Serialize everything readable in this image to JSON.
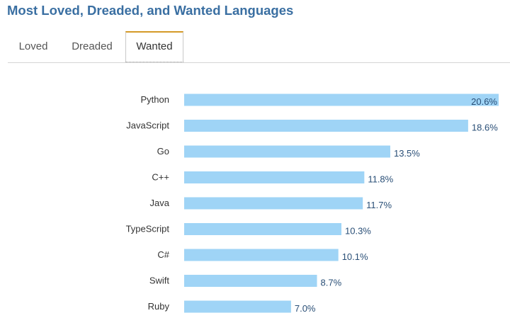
{
  "header": {
    "title": "Most Loved, Dreaded, and Wanted Languages"
  },
  "tabs": [
    {
      "label": "Loved",
      "selected": false
    },
    {
      "label": "Dreaded",
      "selected": false
    },
    {
      "label": "Wanted",
      "selected": true
    }
  ],
  "colors": {
    "title": "#3a6fa2",
    "bar": "#9fd4f6",
    "value_text": "#2a4f77",
    "active_tab_accent": "#d49a28"
  },
  "chart_data": {
    "type": "bar",
    "orientation": "horizontal",
    "categories": [
      "Python",
      "JavaScript",
      "Go",
      "C++",
      "Java",
      "TypeScript",
      "C#",
      "Swift",
      "Ruby"
    ],
    "values": [
      20.6,
      18.6,
      13.5,
      11.8,
      11.7,
      10.3,
      10.1,
      8.7,
      7.0
    ],
    "value_labels": [
      "20.6%",
      "18.6%",
      "13.5%",
      "11.8%",
      "11.7%",
      "10.3%",
      "10.1%",
      "8.7%",
      "7.0%"
    ],
    "xlim": [
      0,
      20.6
    ],
    "grid": false,
    "legend": "none"
  }
}
